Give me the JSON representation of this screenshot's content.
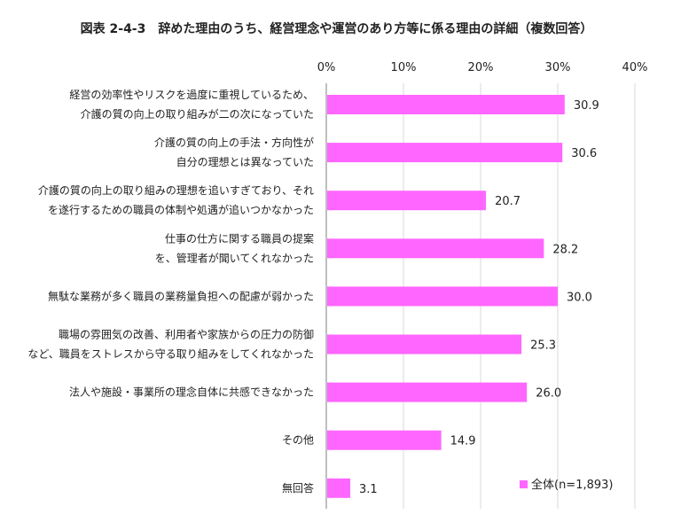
{
  "header": {
    "title": "図表 2-4-3　辞めた理由のうち、経営理念や運営のあり方等に係る理由の詳細（複数回答）"
  },
  "chart_data": {
    "type": "bar",
    "orientation": "horizontal",
    "title": "図表 2-4-3　辞めた理由のうち、経営理念や運営のあり方等に係る理由の詳細（複数回答）",
    "xlabel": "",
    "ylabel": "",
    "xlim": [
      0,
      40
    ],
    "ticks": [
      0,
      10,
      20,
      30,
      40
    ],
    "tick_labels": [
      "0%",
      "10%",
      "20%",
      "30%",
      "40%"
    ],
    "tick_position": "top",
    "grid": true,
    "categories": [
      [
        "経営の効率性やリスクを過度に重視しているため、",
        "介護の質の向上の取り組みが二の次になっていた"
      ],
      [
        "介護の質の向上の手法・方向性が",
        "自分の理想とは異なっていた"
      ],
      [
        "介護の質の向上の取り組みの理想を追いすぎており、それ",
        "を遂行するための職員の体制や処遇が追いつかなかった"
      ],
      [
        "仕事の仕方に関する職員の提案",
        "を、管理者が聞いてくれなかった"
      ],
      [
        "無駄な業務が多く職員の業務量負担への配慮が弱かった"
      ],
      [
        "職場の雰囲気の改善、利用者や家族からの圧力の防御",
        "など、職員をストレスから守る取り組みをしてくれなかった"
      ],
      [
        "法人や施設・事業所の理念自体に共感できなかった"
      ],
      [
        "その他"
      ],
      [
        "無回答"
      ]
    ],
    "series": [
      {
        "name": "全体(n=1,893)",
        "color": "#ff66ff",
        "values": [
          30.9,
          30.6,
          20.7,
          28.2,
          30.0,
          25.3,
          26.0,
          14.9,
          3.1
        ],
        "value_labels": [
          "30.9",
          "30.6",
          "20.7",
          "28.2",
          "30.0",
          "25.3",
          "26.0",
          "14.9",
          "3.1"
        ]
      }
    ],
    "legend": {
      "placement": "bottom-right",
      "entries": [
        "全体(n=1,893)"
      ]
    }
  }
}
